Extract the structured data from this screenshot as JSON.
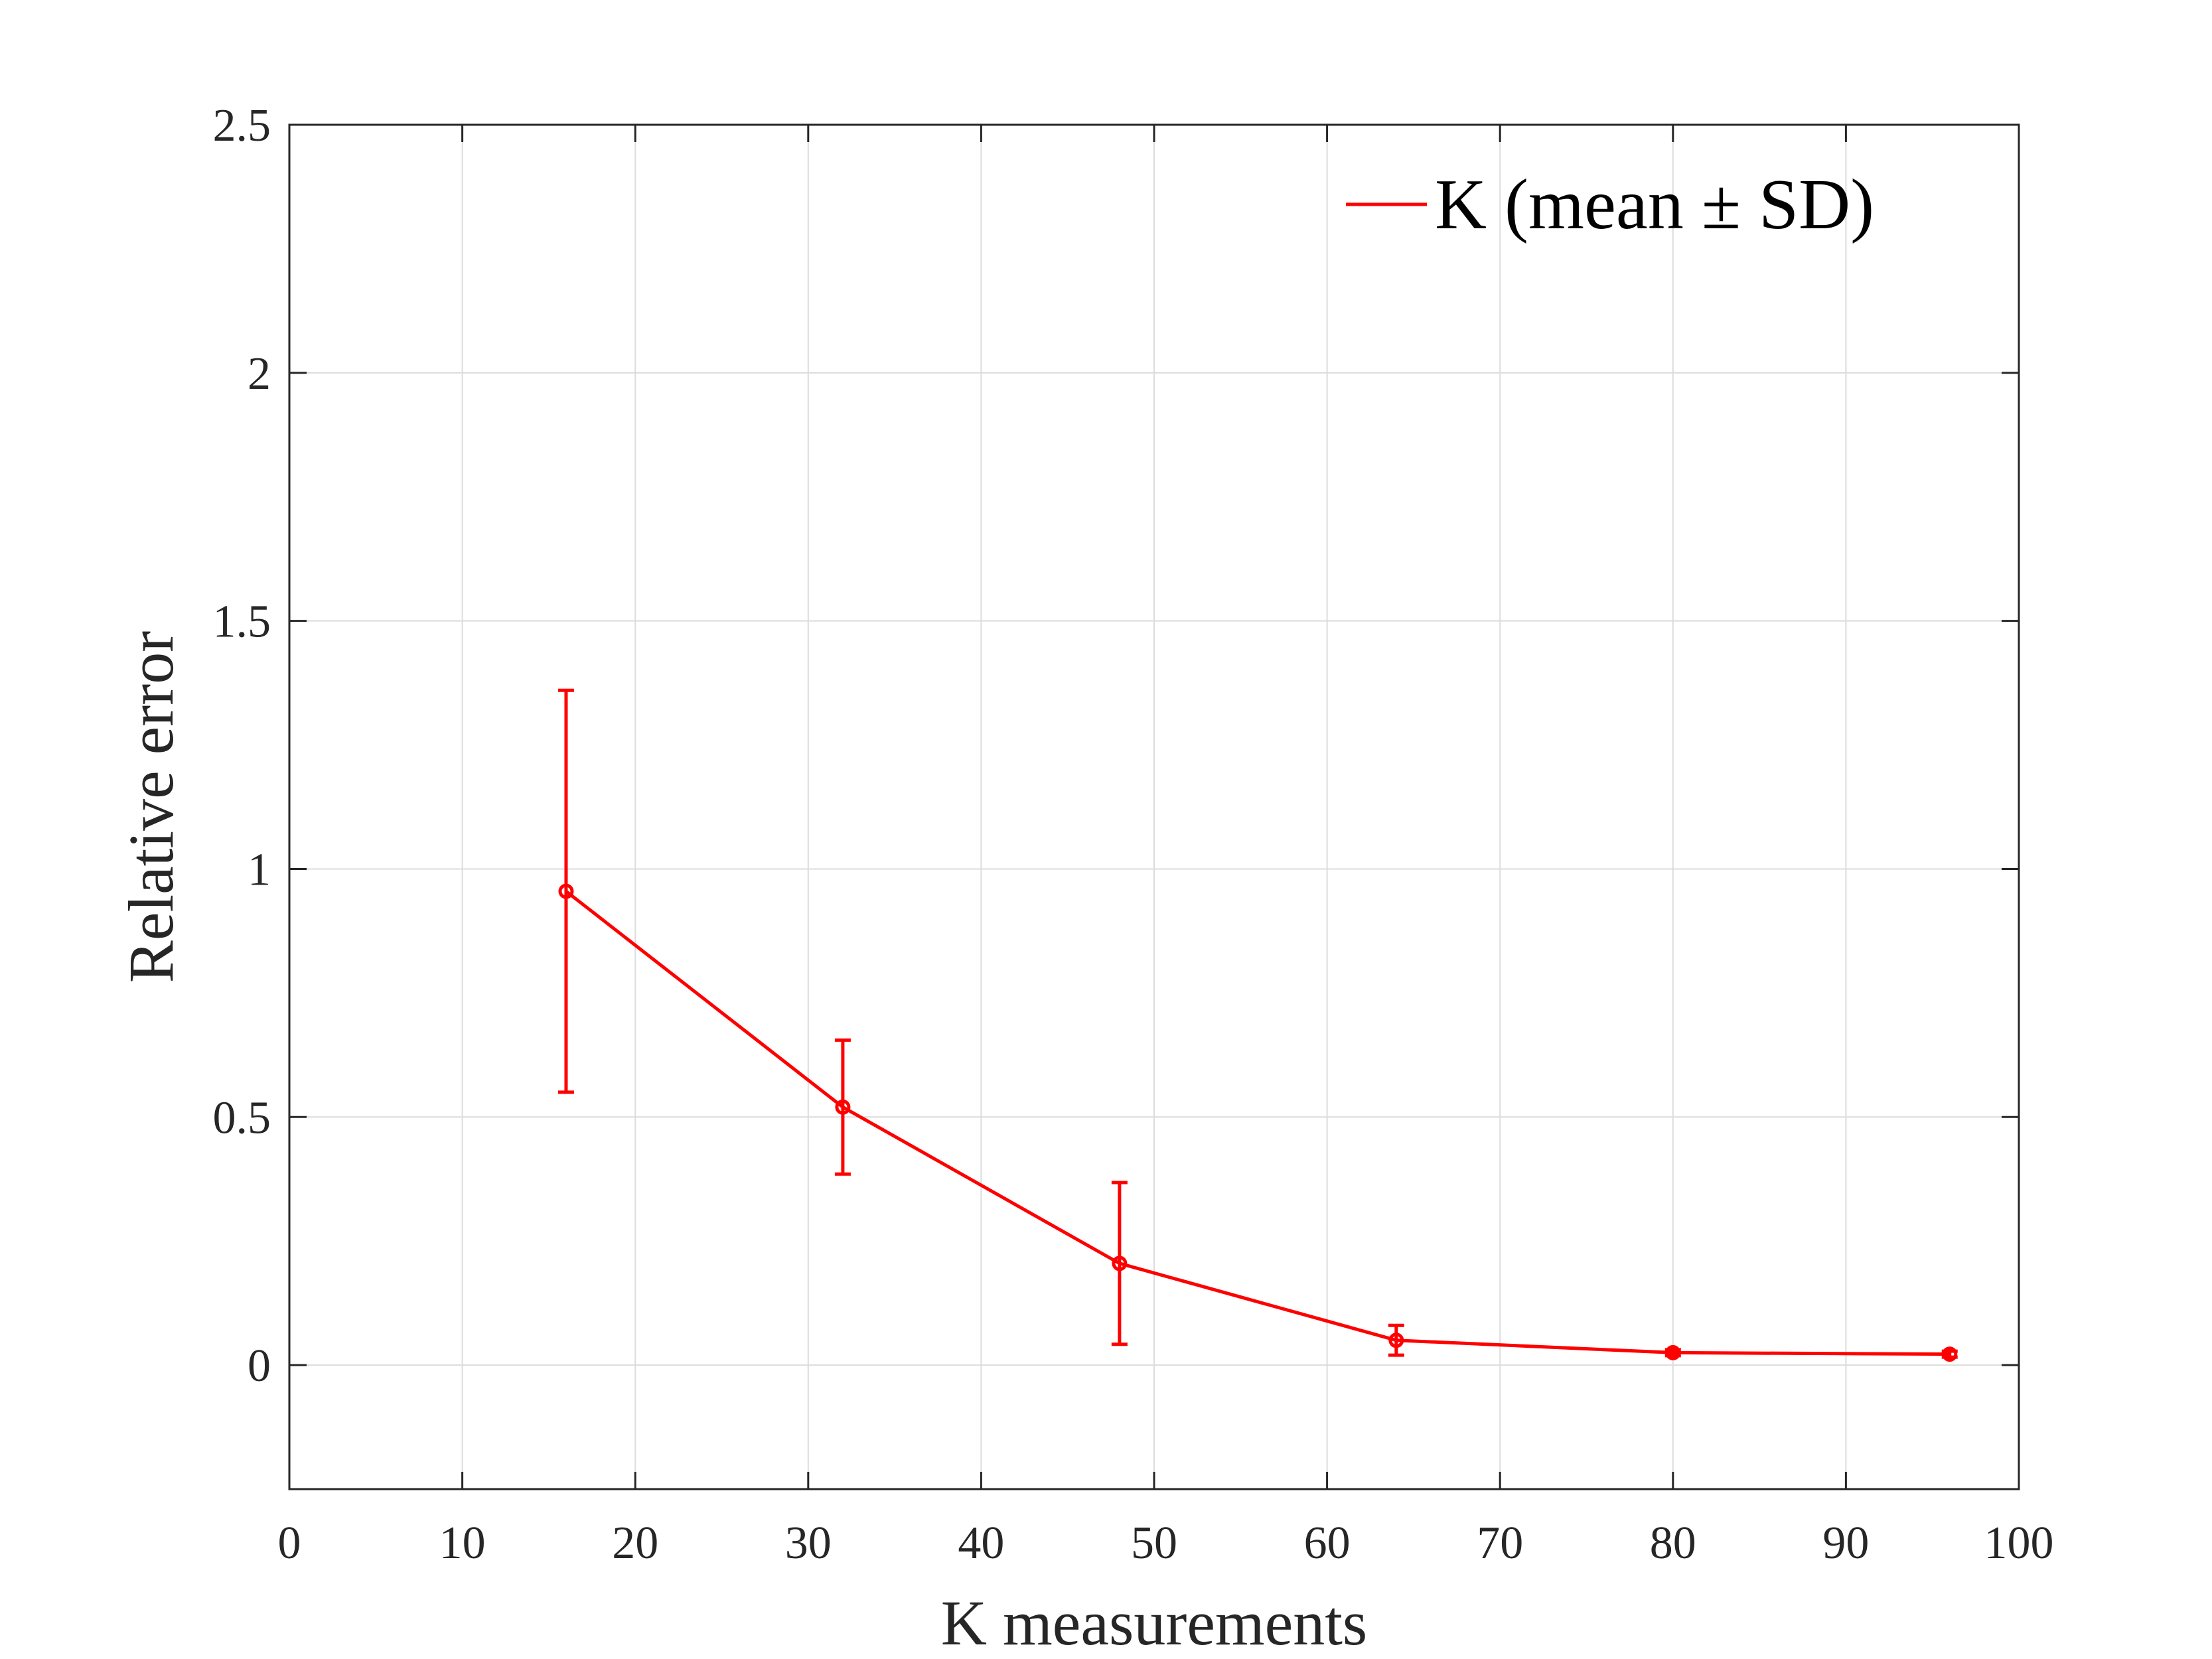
{
  "chart_data": {
    "type": "line",
    "title": "",
    "xlabel": "K measurements",
    "ylabel": "Relative error",
    "xlim": [
      0,
      100
    ],
    "ylim": [
      -0.25,
      2.5
    ],
    "xticks": [
      0,
      10,
      20,
      30,
      40,
      50,
      60,
      70,
      80,
      90,
      100
    ],
    "xtick_labels": [
      "0",
      "10",
      "20",
      "30",
      "40",
      "50",
      "60",
      "70",
      "80",
      "90",
      "100"
    ],
    "yticks": [
      0,
      0.5,
      1,
      1.5,
      2,
      2.5
    ],
    "ytick_labels": [
      "0",
      "0.5",
      "1",
      "1.5",
      "2",
      "2.5"
    ],
    "grid": true,
    "legend_position": "top-right",
    "series": [
      {
        "name": "K (mean ± SD)",
        "color": "#ff0000",
        "error_bars": true,
        "x": [
          16,
          32,
          48,
          64,
          80,
          96
        ],
        "y": [
          0.955,
          0.52,
          0.205,
          0.05,
          0.025,
          0.022
        ],
        "sd": [
          0.405,
          0.135,
          0.163,
          0.03,
          0.006,
          0.006
        ]
      }
    ]
  }
}
